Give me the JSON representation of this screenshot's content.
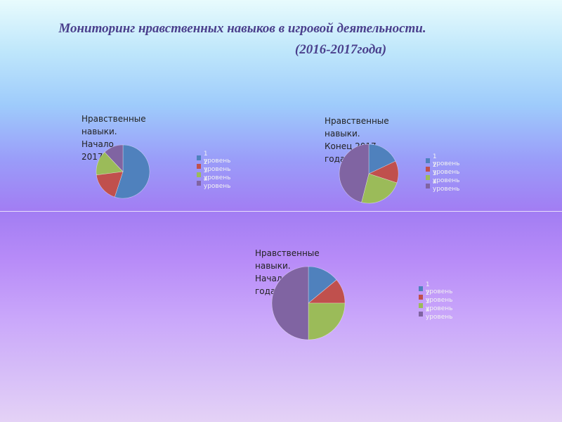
{
  "header": {
    "title_line1": "Мониторинг  нравственных навыков в игровой деятельности.",
    "title_line2": "(2016-2017года)"
  },
  "chart_data": [
    {
      "type": "pie",
      "title": "Нравственные навыки. Начало\n2017 года.",
      "categories": [
        "1 уровень",
        "2 уровень",
        "3 уровень",
        "4 уровень"
      ],
      "values": [
        55,
        18,
        15,
        12
      ],
      "colors": [
        "#4f81bd",
        "#c0504d",
        "#9bbb59",
        "#8064a2"
      ]
    },
    {
      "type": "pie",
      "title": "Нравственные навыки.\nКонец  2017 года.",
      "categories": [
        "1 уровень",
        "2 уровень",
        "3 уровень",
        "4 уровень"
      ],
      "values": [
        18,
        12,
        24,
        46
      ],
      "colors": [
        "#4f81bd",
        "#c0504d",
        "#9bbb59",
        "#8064a2"
      ]
    },
    {
      "type": "pie",
      "title": "Нравственные навыки. Начало2018 года.",
      "categories": [
        "1 уровень",
        "2 уровень",
        "3 уровень",
        "4 уровень"
      ],
      "values": [
        14,
        11,
        25,
        50
      ],
      "colors": [
        "#4f81bd",
        "#c0504d",
        "#9bbb59",
        "#8064a2"
      ]
    }
  ]
}
